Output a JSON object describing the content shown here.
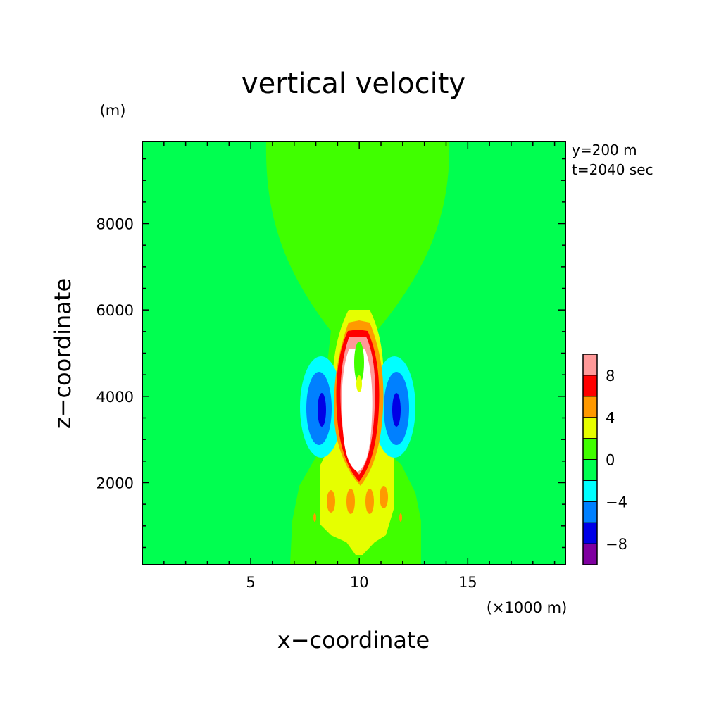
{
  "chart_data": {
    "type": "heatmap",
    "title": "vertical velocity",
    "xlabel": "x−coordinate",
    "ylabel": "z−coordinate",
    "x_unit": "(×1000 m)",
    "y_unit": "(m)",
    "annotations": [
      "y=200 m",
      "t=2040 sec"
    ],
    "xlim": [
      0,
      19.5
    ],
    "ylim": [
      100,
      9900
    ],
    "x_ticks": [
      5,
      10,
      15
    ],
    "x_tick_labels": [
      "5",
      "10",
      "15"
    ],
    "y_ticks": [
      2000,
      4000,
      6000,
      8000
    ],
    "y_tick_labels": [
      "2000",
      "4000",
      "6000",
      "8000"
    ],
    "colorbar": {
      "levels": [
        -10,
        -8,
        -6,
        -4,
        -2,
        0,
        2,
        4,
        6,
        8,
        10
      ],
      "tick_labels": [
        "−8",
        "−4",
        "0",
        "4",
        "8"
      ],
      "tick_values": [
        -8,
        -4,
        0,
        4,
        8
      ],
      "colors": [
        "#7f00a0",
        "#0000e6",
        "#0080ff",
        "#00ffff",
        "#00ff50",
        "#40ff00",
        "#e6ff00",
        "#ff9900",
        "#ff0000",
        "#ff9999"
      ],
      "above_max_color": "#ffffff"
    },
    "background_color": "#00ff50",
    "regions": [
      {
        "level": "0 to 2",
        "x": 10.0,
        "z": 8000,
        "description": "upper plume"
      },
      {
        "level": "> 10",
        "x": 10.2,
        "z": 3400,
        "description": "updraft core maximum"
      },
      {
        "level": "-8 to -10",
        "x": 8.3,
        "z": 3800,
        "description": "left downdraft minimum"
      },
      {
        "level": "-8 to -10",
        "x": 11.8,
        "z": 3800,
        "description": "right downdraft minimum"
      }
    ]
  }
}
